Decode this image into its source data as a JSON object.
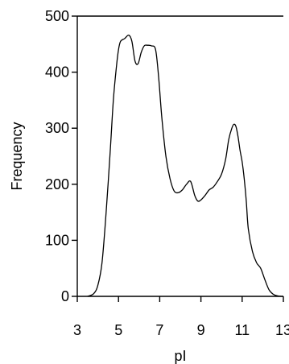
{
  "chart_data": {
    "type": "line",
    "title": "",
    "xlabel": "pI",
    "ylabel": "Frequency",
    "xlim": [
      3,
      13
    ],
    "ylim": [
      0,
      500
    ],
    "xticks": [
      3,
      5,
      7,
      9,
      11,
      13
    ],
    "yticks": [
      0,
      100,
      200,
      300,
      400,
      500
    ],
    "grid": false,
    "legend": "none",
    "line_color": "#000000",
    "series": [
      {
        "x": [
          3.5,
          3.8,
          4.0,
          4.2,
          4.4,
          4.6,
          4.75,
          4.9,
          5.0,
          5.1,
          5.3,
          5.5,
          5.65,
          5.8,
          5.95,
          6.1,
          6.25,
          6.4,
          6.6,
          6.8,
          6.95,
          7.1,
          7.3,
          7.5,
          7.7,
          7.9,
          8.1,
          8.3,
          8.5,
          8.7,
          8.85,
          9.0,
          9.2,
          9.4,
          9.6,
          9.8,
          10.0,
          10.2,
          10.35,
          10.5,
          10.6,
          10.7,
          10.8,
          10.9,
          11.0,
          11.1,
          11.2,
          11.3,
          11.5,
          11.7,
          11.9,
          12.1,
          12.3,
          12.5,
          12.7,
          12.9,
          13.0
        ],
        "y": [
          0,
          5,
          20,
          60,
          150,
          260,
          350,
          410,
          440,
          455,
          460,
          466,
          455,
          420,
          415,
          435,
          447,
          448,
          447,
          440,
          390,
          320,
          250,
          210,
          188,
          185,
          190,
          200,
          205,
          180,
          170,
          172,
          180,
          190,
          195,
          205,
          218,
          245,
          280,
          300,
          307,
          303,
          285,
          260,
          240,
          210,
          170,
          120,
          80,
          60,
          50,
          30,
          12,
          4,
          1,
          0,
          0
        ]
      }
    ]
  }
}
